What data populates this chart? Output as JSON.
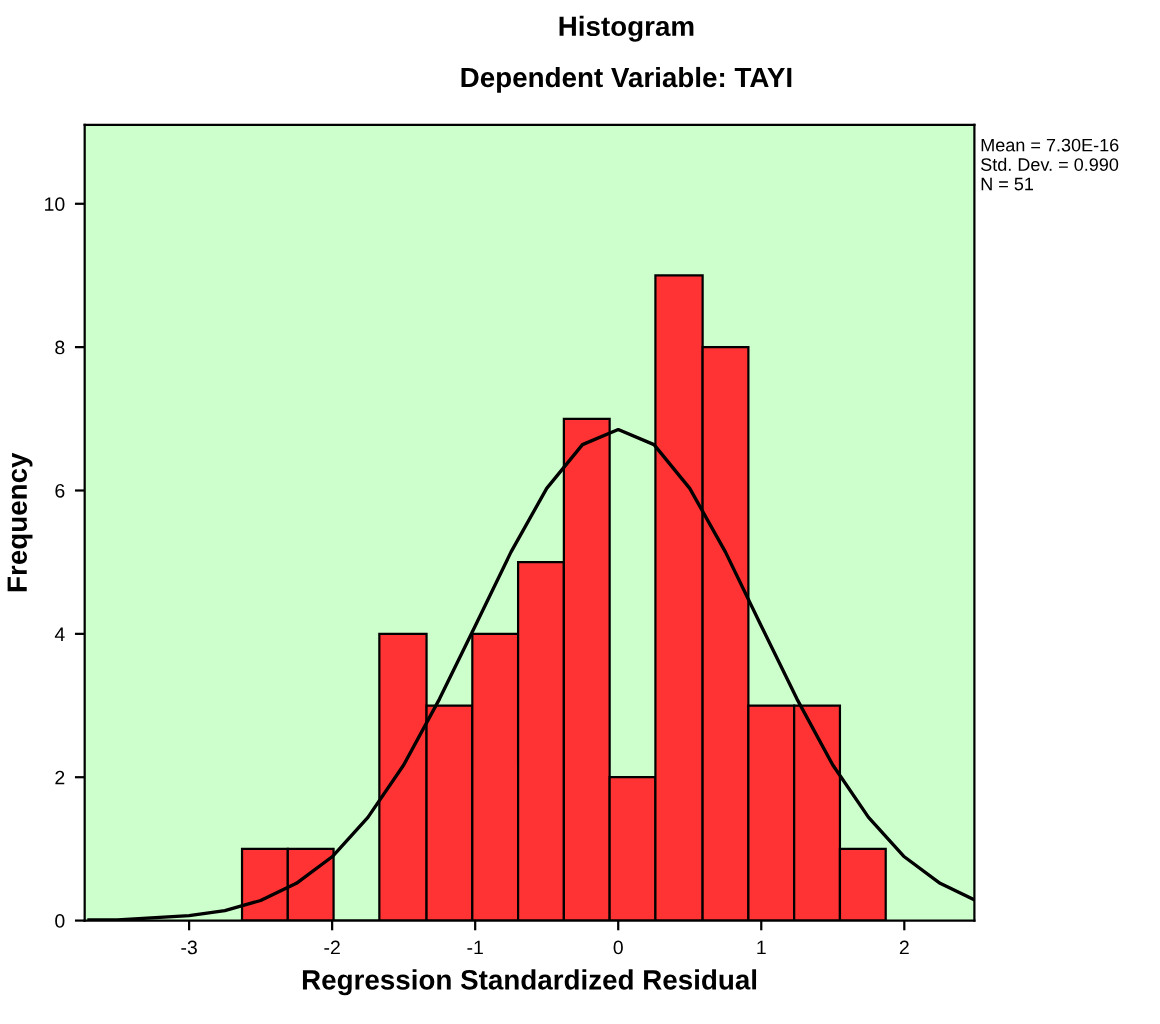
{
  "chart_data": {
    "type": "histogram",
    "title": "Histogram",
    "subtitle": "Dependent Variable: TAYI",
    "xlabel": "Regression Standardized Residual",
    "ylabel": "Frequency",
    "bins": [
      -2.63,
      -2.31,
      -1.99,
      -1.67,
      -1.34,
      -1.02,
      -0.7,
      -0.38,
      -0.06,
      0.26,
      0.59,
      0.91,
      1.23,
      1.55,
      1.87
    ],
    "values": [
      1,
      1,
      0,
      4,
      3,
      4,
      5,
      7,
      2,
      9,
      8,
      3,
      3,
      1
    ],
    "color": "#ff3333",
    "series": [
      {
        "type": "line",
        "color": "#000000",
        "x": [
          -3.7,
          -3.5,
          -3,
          -2.75,
          -2.5,
          -2.25,
          -2,
          -1.75,
          -1.5,
          -1.25,
          -1,
          -0.75,
          -0.5,
          -0.25,
          0,
          0.25,
          0.5,
          0.75,
          1,
          1.25,
          1.5,
          1.75,
          2,
          2.25,
          2.49
        ],
        "values": [
          0.01,
          0.01,
          0.07,
          0.14,
          0.28,
          0.52,
          0.89,
          1.44,
          2.17,
          3.09,
          4.11,
          5.14,
          6.03,
          6.64,
          6.85,
          6.64,
          6.03,
          5.14,
          4.11,
          3.09,
          2.17,
          1.44,
          0.89,
          0.52,
          0.29
        ]
      }
    ],
    "xlim": [
      -3.73,
      2.49
    ],
    "ylim": [
      0,
      11.1
    ],
    "xticks": [
      -3,
      -2,
      -1,
      0,
      1,
      2
    ],
    "yticks": [
      0,
      2,
      4,
      6,
      8,
      10
    ],
    "grid": false,
    "annotations": [
      "Mean = 7.30E-16",
      "Std. Dev. = 0.990",
      "N = 51"
    ]
  }
}
